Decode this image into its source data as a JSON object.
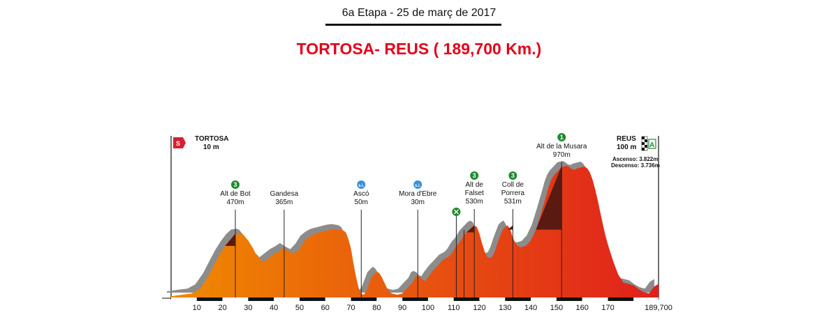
{
  "header": {
    "stage": "6a Etapa - 25 de  març de 2017",
    "route": "TORTOSA- REUS ( 189,700 Km.)"
  },
  "colors": {
    "title": "#e3001b",
    "gradient_start": "#f08a00",
    "gradient_end": "#e0201c",
    "shadow": "#8c8c8c",
    "climb_dark": "#5a1a12",
    "badge_green": "#1e8a2e",
    "badge_blue": "#3a8fd8",
    "start_flag": "#d6202e"
  },
  "start": {
    "flag": "S",
    "name": "TORTOSA",
    "alt": "10 m"
  },
  "finish": {
    "name": "REUS",
    "alt": "100 m",
    "sign": "A",
    "ascent": "Ascenso:  3.822m",
    "descent": "Descenso: 3.736m"
  },
  "chart_data": {
    "type": "area",
    "title": "TORTOSA- REUS ( 189,700 Km.)",
    "xlabel": "",
    "ylabel": "",
    "xlim": [
      0,
      189.7
    ],
    "ylim": [
      0,
      1000
    ],
    "x_ticks": [
      "10",
      "20",
      "30",
      "40",
      "50",
      "60",
      "70",
      "80",
      "90",
      "100",
      "110",
      "120",
      "130",
      "140",
      "150",
      "160",
      "170",
      "189,700"
    ],
    "x_tick_values": [
      10,
      20,
      30,
      40,
      50,
      60,
      70,
      80,
      90,
      100,
      110,
      120,
      130,
      140,
      150,
      160,
      170,
      189.7
    ],
    "series": [
      {
        "x": [
          0,
          4,
          8,
          11,
          14,
          17,
          19,
          21,
          23,
          25,
          27,
          28,
          30,
          32,
          33,
          35,
          36,
          38,
          40,
          42,
          44,
          46,
          48,
          50,
          52,
          54,
          56,
          58,
          60,
          62,
          64,
          66,
          67,
          68,
          69,
          70,
          71,
          72,
          73,
          74,
          75,
          76,
          77,
          78,
          80,
          81,
          82,
          83,
          84,
          85,
          86,
          88,
          90,
          92,
          94,
          95,
          96,
          97,
          98,
          99,
          100,
          102,
          104,
          106,
          107,
          108,
          109,
          110,
          111,
          112,
          113,
          114,
          115,
          116,
          117,
          118,
          119,
          120,
          121,
          122,
          123,
          124,
          125,
          126,
          127,
          128,
          129,
          130,
          131,
          132,
          133,
          134,
          135,
          136,
          138,
          140,
          142,
          144,
          146,
          147,
          148,
          149,
          150,
          151,
          152,
          153,
          154,
          155,
          156,
          157,
          158,
          159,
          160,
          161,
          162,
          163,
          164,
          165,
          166,
          167,
          168,
          169,
          170,
          172,
          174,
          176,
          178,
          180,
          182,
          184,
          186,
          188,
          189.7
        ],
        "y": [
          10,
          20,
          30,
          60,
          140,
          250,
          320,
          380,
          430,
          465,
          470,
          465,
          420,
          360,
          320,
          280,
          260,
          290,
          320,
          340,
          365,
          340,
          320,
          360,
          420,
          450,
          470,
          480,
          490,
          500,
          505,
          500,
          495,
          480,
          430,
          360,
          250,
          150,
          70,
          30,
          20,
          50,
          100,
          150,
          190,
          180,
          150,
          110,
          70,
          40,
          30,
          20,
          30,
          70,
          110,
          150,
          160,
          150,
          130,
          120,
          150,
          200,
          240,
          280,
          290,
          300,
          320,
          350,
          380,
          400,
          430,
          460,
          480,
          500,
          520,
          530,
          520,
          470,
          400,
          340,
          300,
          290,
          300,
          340,
          400,
          450,
          500,
          520,
          531,
          500,
          440,
          400,
          380,
          370,
          380,
          420,
          500,
          620,
          750,
          820,
          870,
          900,
          920,
          940,
          960,
          965,
          970,
          960,
          945,
          940,
          950,
          955,
          960,
          965,
          950,
          920,
          870,
          800,
          720,
          630,
          540,
          460,
          390,
          270,
          170,
          110,
          100,
          90,
          60,
          40,
          30,
          80,
          100
        ]
      }
    ],
    "points": [
      {
        "name": "Alt de Bot",
        "alt_label": "470m",
        "km": 25,
        "badge": "3",
        "kind": "climb"
      },
      {
        "name": "Gandesa",
        "alt_label": "365m",
        "km": 44,
        "badge": "",
        "kind": "town"
      },
      {
        "name": "Ascó",
        "alt_label": "50m",
        "km": 74,
        "badge": "s.i.",
        "kind": "sprint"
      },
      {
        "name": "Mora d'Ebre",
        "alt_label": "30m",
        "km": 96,
        "badge": "s.i.",
        "kind": "sprint"
      },
      {
        "name": "Alt de\nFalset",
        "alt_label": "530m",
        "km": 118,
        "badge": "3",
        "kind": "climb"
      },
      {
        "name": "Coll de\nPorrera",
        "alt_label": "531m",
        "km": 133,
        "badge": "3",
        "kind": "climb"
      },
      {
        "name": "Alt de la Musara",
        "alt_label": "970m",
        "km": 152,
        "badge": "1",
        "kind": "climb"
      }
    ],
    "feed_zone_km": 111
  }
}
